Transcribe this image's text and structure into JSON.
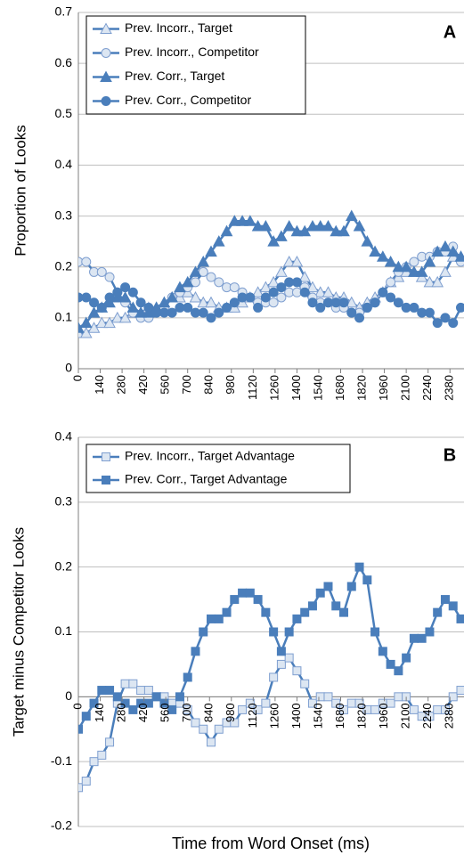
{
  "chart_data": [
    {
      "type": "line",
      "label": "A",
      "y_label": "Proportion of Looks",
      "legend": "upper left",
      "grid": true,
      "x": [
        0,
        50,
        100,
        150,
        200,
        250,
        300,
        350,
        400,
        450,
        500,
        550,
        600,
        650,
        700,
        750,
        800,
        850,
        900,
        950,
        1000,
        1050,
        1100,
        1150,
        1200,
        1250,
        1300,
        1350,
        1400,
        1450,
        1500,
        1550,
        1600,
        1650,
        1700,
        1750,
        1800,
        1850,
        1900,
        1950,
        2000,
        2050,
        2100,
        2150,
        2200,
        2250,
        2300,
        2350,
        2400,
        2450
      ],
      "xlim": [
        0,
        2470
      ],
      "xticks": [
        0,
        140,
        280,
        420,
        560,
        700,
        840,
        980,
        1120,
        1260,
        1400,
        1540,
        1680,
        1820,
        1960,
        2100,
        2240,
        2380
      ],
      "ylim": [
        0,
        0.7
      ],
      "yticks": [
        0,
        0.1,
        0.2,
        0.3,
        0.4,
        0.5,
        0.6,
        0.7
      ],
      "series": [
        {
          "name": "Prev. Incorr., Target",
          "marker": "triangle",
          "color": "#4a7ebb",
          "marker_fill": "#dce6f2",
          "marker_stroke": "#7f9fd0",
          "values": [
            0.07,
            0.07,
            0.08,
            0.09,
            0.09,
            0.1,
            0.1,
            0.11,
            0.11,
            0.12,
            0.12,
            0.13,
            0.14,
            0.14,
            0.15,
            0.14,
            0.13,
            0.13,
            0.12,
            0.12,
            0.12,
            0.13,
            0.14,
            0.15,
            0.16,
            0.17,
            0.19,
            0.21,
            0.21,
            0.18,
            0.16,
            0.15,
            0.15,
            0.14,
            0.14,
            0.13,
            0.12,
            0.13,
            0.14,
            0.15,
            0.17,
            0.18,
            0.19,
            0.19,
            0.18,
            0.17,
            0.17,
            0.19,
            0.22,
            0.22
          ]
        },
        {
          "name": "Prev. Incorr., Competitor",
          "marker": "circle",
          "color": "#4a7ebb",
          "marker_fill": "#dce6f2",
          "marker_stroke": "#7f9fd0",
          "values": [
            0.21,
            0.21,
            0.19,
            0.19,
            0.18,
            0.15,
            0.13,
            0.11,
            0.1,
            0.1,
            0.11,
            0.12,
            0.14,
            0.15,
            0.16,
            0.17,
            0.19,
            0.18,
            0.17,
            0.16,
            0.16,
            0.15,
            0.14,
            0.13,
            0.13,
            0.13,
            0.14,
            0.15,
            0.15,
            0.16,
            0.14,
            0.13,
            0.13,
            0.12,
            0.12,
            0.11,
            0.11,
            0.12,
            0.13,
            0.15,
            0.17,
            0.19,
            0.2,
            0.21,
            0.22,
            0.22,
            0.23,
            0.23,
            0.24,
            0.21
          ]
        },
        {
          "name": "Prev. Corr., Target",
          "marker": "triangle",
          "color": "#4a7ebb",
          "marker_fill": "#4a7ebb",
          "marker_stroke": "#4a7ebb",
          "values": [
            0.08,
            0.09,
            0.11,
            0.12,
            0.13,
            0.14,
            0.14,
            0.12,
            0.11,
            0.11,
            0.12,
            0.13,
            0.14,
            0.16,
            0.17,
            0.19,
            0.21,
            0.23,
            0.25,
            0.27,
            0.29,
            0.29,
            0.29,
            0.28,
            0.28,
            0.25,
            0.26,
            0.28,
            0.27,
            0.27,
            0.28,
            0.28,
            0.28,
            0.27,
            0.27,
            0.3,
            0.28,
            0.25,
            0.23,
            0.22,
            0.21,
            0.2,
            0.2,
            0.19,
            0.19,
            0.21,
            0.23,
            0.24,
            0.23,
            0.22
          ]
        },
        {
          "name": "Prev. Corr., Competitor",
          "marker": "circle",
          "color": "#4a7ebb",
          "marker_fill": "#4a7ebb",
          "marker_stroke": "#4a7ebb",
          "values": [
            0.14,
            0.14,
            0.13,
            0.12,
            0.14,
            0.15,
            0.16,
            0.15,
            0.13,
            0.12,
            0.11,
            0.11,
            0.11,
            0.12,
            0.12,
            0.11,
            0.11,
            0.1,
            0.11,
            0.12,
            0.13,
            0.14,
            0.14,
            0.12,
            0.14,
            0.15,
            0.16,
            0.17,
            0.17,
            0.15,
            0.13,
            0.12,
            0.13,
            0.13,
            0.13,
            0.11,
            0.1,
            0.12,
            0.13,
            0.15,
            0.14,
            0.13,
            0.12,
            0.12,
            0.11,
            0.11,
            0.09,
            0.1,
            0.09,
            0.12
          ]
        }
      ]
    },
    {
      "type": "line",
      "label": "B",
      "y_label": "Target minus Competitor Looks",
      "x_label": "Time from Word Onset (ms)",
      "legend": "upper left",
      "grid": true,
      "x": [
        0,
        50,
        100,
        150,
        200,
        250,
        300,
        350,
        400,
        450,
        500,
        550,
        600,
        650,
        700,
        750,
        800,
        850,
        900,
        950,
        1000,
        1050,
        1100,
        1150,
        1200,
        1250,
        1300,
        1350,
        1400,
        1450,
        1500,
        1550,
        1600,
        1650,
        1700,
        1750,
        1800,
        1850,
        1900,
        1950,
        2000,
        2050,
        2100,
        2150,
        2200,
        2250,
        2300,
        2350,
        2400,
        2450
      ],
      "xlim": [
        0,
        2470
      ],
      "xticks": [
        0,
        140,
        280,
        420,
        560,
        700,
        840,
        980,
        1120,
        1260,
        1400,
        1540,
        1680,
        1820,
        1960,
        2100,
        2240,
        2380
      ],
      "ylim": [
        -0.2,
        0.4
      ],
      "yticks": [
        -0.2,
        -0.1,
        0,
        0.1,
        0.2,
        0.3,
        0.4
      ],
      "series": [
        {
          "name": "Prev. Incorr., Target Advantage",
          "marker": "square",
          "color": "#4a7ebb",
          "marker_fill": "#dce6f2",
          "marker_stroke": "#7f9fd0",
          "values": [
            -0.14,
            -0.13,
            -0.1,
            -0.09,
            -0.07,
            -0.01,
            0.02,
            0.02,
            0.01,
            0.01,
            0.0,
            0.0,
            -0.01,
            -0.01,
            -0.02,
            -0.04,
            -0.05,
            -0.07,
            -0.05,
            -0.04,
            -0.04,
            -0.02,
            -0.01,
            -0.02,
            -0.01,
            0.03,
            0.05,
            0.06,
            0.04,
            0.02,
            -0.01,
            0.0,
            0.0,
            -0.01,
            -0.02,
            -0.01,
            -0.01,
            -0.02,
            -0.02,
            -0.01,
            -0.01,
            0.0,
            0.0,
            -0.02,
            -0.03,
            -0.03,
            -0.02,
            -0.02,
            0.0,
            0.01
          ]
        },
        {
          "name": "Prev. Corr., Target Advantage",
          "marker": "square",
          "color": "#4a7ebb",
          "marker_fill": "#4a7ebb",
          "marker_stroke": "#4a7ebb",
          "values": [
            -0.05,
            -0.03,
            -0.01,
            0.01,
            0.01,
            0.0,
            -0.01,
            -0.02,
            -0.01,
            -0.01,
            0.0,
            -0.01,
            -0.02,
            0.0,
            0.03,
            0.07,
            0.1,
            0.12,
            0.12,
            0.13,
            0.15,
            0.16,
            0.16,
            0.15,
            0.13,
            0.1,
            0.07,
            0.1,
            0.12,
            0.13,
            0.14,
            0.16,
            0.17,
            0.14,
            0.13,
            0.17,
            0.2,
            0.18,
            0.1,
            0.07,
            0.05,
            0.04,
            0.06,
            0.09,
            0.09,
            0.1,
            0.13,
            0.15,
            0.14,
            0.12
          ]
        }
      ]
    }
  ]
}
